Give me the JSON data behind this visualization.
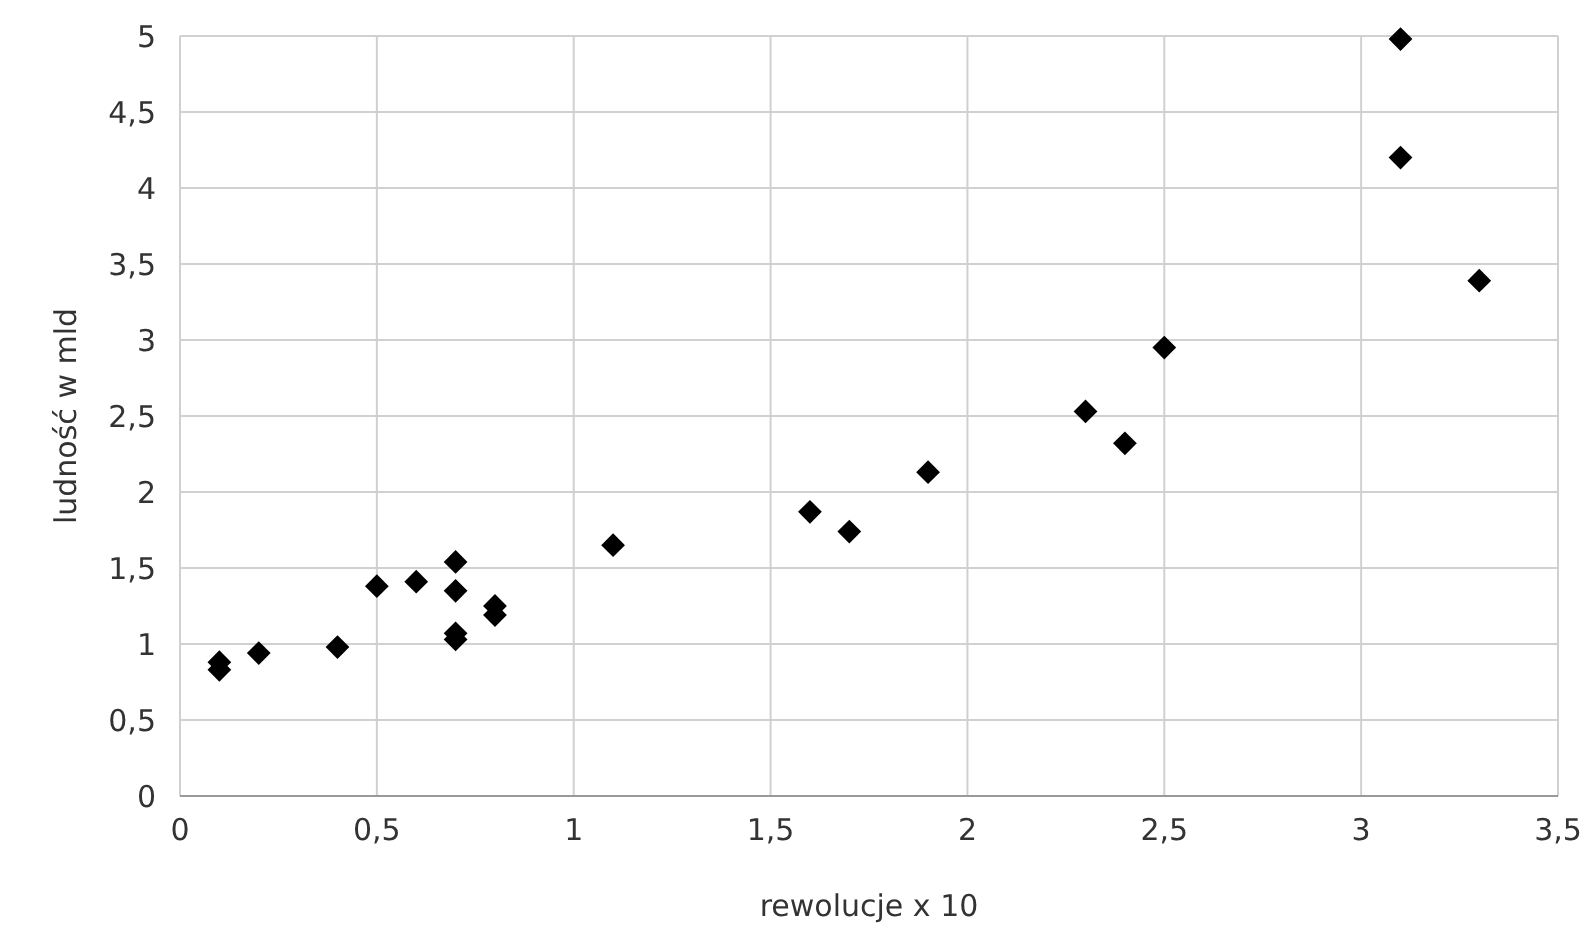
{
  "chart_data": {
    "type": "scatter",
    "xlabel": "rewolucje x 10",
    "ylabel": "ludność w mld",
    "marker": "diamond",
    "grid": true,
    "series": [
      {
        "color": "#000000",
        "x": [
          0.1,
          0.1,
          0.2,
          0.4,
          0.5,
          0.6,
          0.7,
          0.7,
          0.7,
          0.7,
          0.8,
          0.8,
          1.1,
          1.6,
          1.7,
          1.9,
          2.3,
          2.4,
          2.5,
          3.1,
          3.1,
          3.3
        ],
        "values": [
          0.88,
          0.83,
          0.94,
          0.98,
          1.38,
          1.41,
          1.54,
          1.35,
          1.07,
          1.03,
          1.25,
          1.19,
          1.65,
          1.87,
          1.74,
          2.13,
          2.53,
          2.32,
          2.95,
          4.98,
          4.2,
          3.39
        ]
      }
    ],
    "xlim": [
      0,
      3.5
    ],
    "ylim": [
      0,
      5
    ],
    "xticks": [
      0,
      {
        "value": 0.5,
        "label": "0,5"
      },
      1,
      {
        "value": 1.5,
        "label": "1,5"
      },
      2,
      {
        "value": 2.5,
        "label": "2,5"
      },
      3,
      {
        "value": 3.5,
        "label": "3,5"
      }
    ],
    "yticks": [
      0,
      {
        "value": 0.5,
        "label": "0,5"
      },
      1,
      {
        "value": 1.5,
        "label": "1,5"
      },
      2,
      {
        "value": 2.5,
        "label": "2,5"
      },
      3,
      {
        "value": 3.5,
        "label": "3,5"
      },
      4,
      {
        "value": 4.5,
        "label": "4,5"
      },
      5
    ]
  }
}
